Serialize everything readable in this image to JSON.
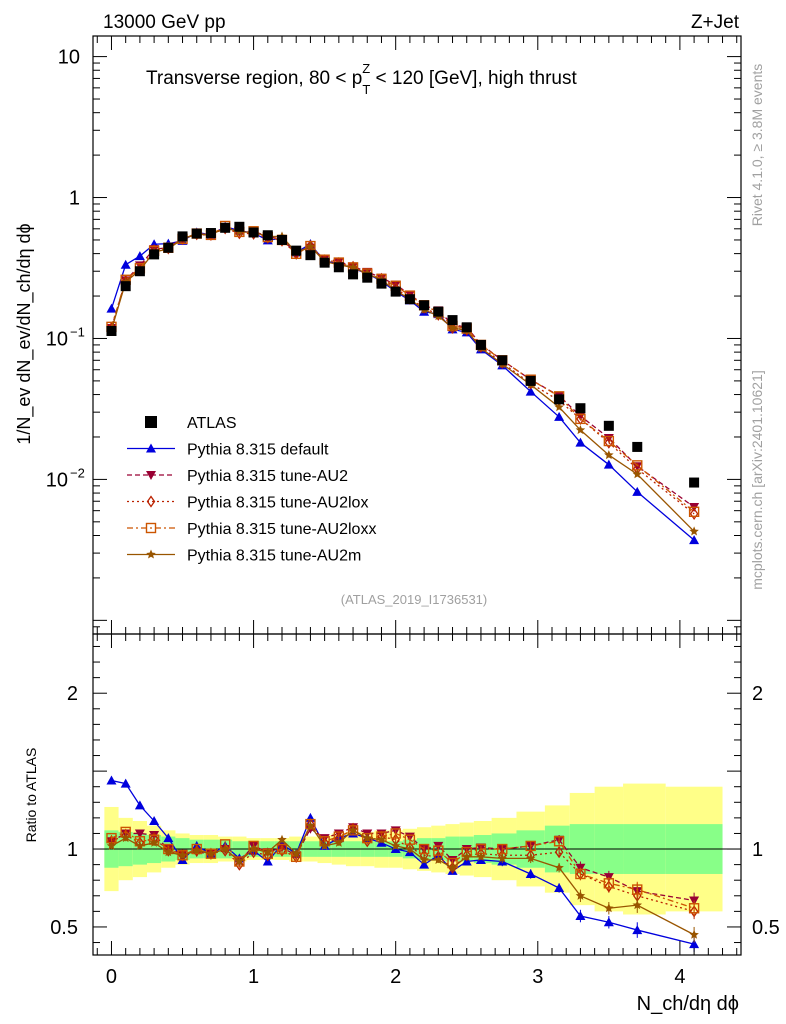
{
  "header": {
    "energy_label": "13000 GeV pp",
    "process_label": "Z+Jet",
    "rivet_label": "Rivet 4.1.0, ≥ 3.8M events",
    "mcplots_label": "mcplots.cern.ch [arXiv:2401.10621]"
  },
  "chart_data": {
    "type": "line",
    "title": "Transverse region, 80 < p",
    "title_sub": "T",
    "title_sup": "Z",
    "title_tail": " < 120 [GeV], high thrust",
    "watermark": "(ATLAS_2019_I1736531)",
    "yscale": "log",
    "xlim": [
      -0.13,
      4.43
    ],
    "ylim": [
      0.0008,
      14
    ],
    "ratio_ylim": [
      0.32,
      2.38
    ],
    "xticks": [
      0,
      1,
      2,
      3,
      4
    ],
    "xtick_labels": [
      "0",
      "1",
      "2",
      "3",
      "4"
    ],
    "ratio_yticks": [
      0.5,
      1,
      2
    ],
    "ratio_ytick_labels": [
      "0.5",
      "1",
      "2"
    ],
    "ylabel_main": "1/N_ev dN_ev/dN_ch/dη dϕ",
    "ylabel_ratio": "Ratio to ATLAS",
    "xlabel": "N_ch/dη dϕ",
    "legend": [
      "ATLAS",
      "Pythia 8.315 default",
      "Pythia 8.315 tune-AU2",
      "Pythia 8.315 tune-AU2lox",
      "Pythia 8.315 tune-AU2loxx",
      "Pythia 8.315 tune-AU2m"
    ],
    "x": [
      0.0,
      0.1,
      0.2,
      0.3,
      0.4,
      0.5,
      0.6,
      0.7,
      0.8,
      0.9,
      1.0,
      1.1,
      1.2,
      1.3,
      1.4,
      1.5,
      1.6,
      1.7,
      1.8,
      1.9,
      2.0,
      2.1,
      2.2,
      2.3,
      2.4,
      2.5,
      2.6,
      2.75,
      2.95,
      3.15,
      3.3,
      3.5,
      3.7,
      4.1
    ],
    "atlas": [
      0.113,
      0.235,
      0.3,
      0.395,
      0.44,
      0.53,
      0.555,
      0.56,
      0.61,
      0.62,
      0.565,
      0.54,
      0.5,
      0.42,
      0.39,
      0.345,
      0.32,
      0.285,
      0.27,
      0.245,
      0.215,
      0.19,
      0.172,
      0.155,
      0.135,
      0.12,
      0.09,
      0.07,
      0.05,
      0.037,
      0.032,
      0.024,
      0.017,
      0.0095
    ],
    "band_inner": [
      0.12,
      0.11,
      0.1,
      0.09,
      0.08,
      0.07,
      0.06,
      0.06,
      0.06,
      0.05,
      0.05,
      0.05,
      0.05,
      0.05,
      0.05,
      0.05,
      0.05,
      0.05,
      0.05,
      0.05,
      0.05,
      0.06,
      0.07,
      0.07,
      0.08,
      0.08,
      0.09,
      0.1,
      0.12,
      0.15,
      0.16,
      0.16,
      0.16,
      0.16
    ],
    "band_outer": [
      0.27,
      0.2,
      0.18,
      0.15,
      0.12,
      0.1,
      0.09,
      0.09,
      0.08,
      0.08,
      0.07,
      0.07,
      0.07,
      0.08,
      0.08,
      0.09,
      0.1,
      0.11,
      0.11,
      0.12,
      0.12,
      0.13,
      0.14,
      0.15,
      0.16,
      0.17,
      0.18,
      0.2,
      0.24,
      0.28,
      0.36,
      0.4,
      0.42,
      0.4
    ],
    "series": [
      {
        "name": "Pythia 8.315 default",
        "color": "#0000dd",
        "marker": "triangle-up",
        "dash": "",
        "ratio": [
          1.44,
          1.42,
          1.28,
          1.18,
          1.07,
          0.93,
          1.02,
          0.97,
          1.02,
          0.94,
          0.99,
          0.92,
          1.03,
          0.97,
          1.2,
          1.02,
          1.07,
          1.1,
          1.07,
          1.04,
          1.0,
          0.98,
          0.9,
          0.96,
          0.86,
          0.92,
          0.93,
          0.92,
          0.84,
          0.75,
          0.57,
          0.53,
          0.48,
          0.39
        ],
        "ratio_err": [
          0.02,
          0.02,
          0.02,
          0.02,
          0.02,
          0.02,
          0.02,
          0.02,
          0.02,
          0.02,
          0.02,
          0.02,
          0.02,
          0.02,
          0.02,
          0.02,
          0.02,
          0.02,
          0.02,
          0.02,
          0.02,
          0.02,
          0.02,
          0.02,
          0.02,
          0.02,
          0.02,
          0.03,
          0.03,
          0.03,
          0.04,
          0.04,
          0.05,
          0.05
        ]
      },
      {
        "name": "Pythia 8.315 tune-AU2",
        "color": "#990033",
        "marker": "triangle-down",
        "dash": "5,3",
        "ratio": [
          1.05,
          1.1,
          1.1,
          1.09,
          1.0,
          0.97,
          0.98,
          0.97,
          1.0,
          0.92,
          1.02,
          0.98,
          1.01,
          0.96,
          1.13,
          1.07,
          1.1,
          1.14,
          1.1,
          1.1,
          1.12,
          1.08,
          1.0,
          1.02,
          0.93,
          1.0,
          1.01,
          1.0,
          1.02,
          1.06,
          0.88,
          0.82,
          0.73,
          0.67
        ],
        "ratio_err": [
          0.02,
          0.02,
          0.02,
          0.02,
          0.02,
          0.02,
          0.02,
          0.02,
          0.02,
          0.02,
          0.02,
          0.02,
          0.02,
          0.02,
          0.02,
          0.02,
          0.02,
          0.02,
          0.02,
          0.02,
          0.02,
          0.02,
          0.02,
          0.02,
          0.02,
          0.02,
          0.02,
          0.03,
          0.03,
          0.03,
          0.04,
          0.04,
          0.05,
          0.05
        ]
      },
      {
        "name": "Pythia 8.315 tune-AU2lox",
        "color": "#bb2200",
        "marker": "diamond-open",
        "dash": "2,3",
        "ratio": [
          1.05,
          1.09,
          1.04,
          1.07,
          0.99,
          0.96,
          0.99,
          0.97,
          0.99,
          0.9,
          0.98,
          0.96,
          0.99,
          0.95,
          1.16,
          1.04,
          1.07,
          1.13,
          1.05,
          1.08,
          1.06,
          1.01,
          0.96,
          0.95,
          0.88,
          0.96,
          0.97,
          0.96,
          0.96,
          0.98,
          0.84,
          0.76,
          0.7,
          0.6
        ],
        "ratio_err": [
          0.02,
          0.02,
          0.02,
          0.02,
          0.02,
          0.02,
          0.02,
          0.02,
          0.02,
          0.02,
          0.02,
          0.02,
          0.02,
          0.02,
          0.02,
          0.02,
          0.02,
          0.02,
          0.02,
          0.02,
          0.02,
          0.02,
          0.02,
          0.02,
          0.02,
          0.02,
          0.02,
          0.03,
          0.03,
          0.03,
          0.04,
          0.04,
          0.05,
          0.05
        ]
      },
      {
        "name": "Pythia 8.315 tune-AU2loxx",
        "color": "#cc5500",
        "marker": "square-open",
        "dash": "6,3,2,3",
        "ratio": [
          1.07,
          1.11,
          1.05,
          1.06,
          1.0,
          0.96,
          1.0,
          0.97,
          1.03,
          0.92,
          1.02,
          0.97,
          1.0,
          0.95,
          1.16,
          1.05,
          1.08,
          1.12,
          1.07,
          1.08,
          1.1,
          1.06,
          1.0,
          0.99,
          0.91,
          0.98,
          1.0,
          1.0,
          1.02,
          1.05,
          0.84,
          0.78,
          0.74,
          0.62
        ],
        "ratio_err": [
          0.02,
          0.02,
          0.02,
          0.02,
          0.02,
          0.02,
          0.02,
          0.02,
          0.02,
          0.02,
          0.02,
          0.02,
          0.02,
          0.02,
          0.02,
          0.02,
          0.02,
          0.02,
          0.02,
          0.02,
          0.02,
          0.02,
          0.02,
          0.02,
          0.02,
          0.02,
          0.02,
          0.03,
          0.03,
          0.03,
          0.04,
          0.04,
          0.05,
          0.05
        ]
      },
      {
        "name": "Pythia 8.315 tune-AU2m",
        "color": "#995500",
        "marker": "star",
        "dash": "",
        "ratio": [
          1.02,
          1.07,
          1.02,
          1.04,
          0.98,
          0.96,
          0.99,
          0.97,
          1.0,
          0.92,
          1.0,
          0.98,
          1.06,
          0.97,
          1.15,
          1.02,
          1.04,
          1.12,
          1.07,
          1.06,
          1.02,
          1.0,
          0.93,
          0.93,
          0.88,
          0.95,
          0.95,
          0.94,
          0.94,
          0.88,
          0.7,
          0.62,
          0.64,
          0.45
        ],
        "ratio_err": [
          0.02,
          0.02,
          0.02,
          0.02,
          0.02,
          0.02,
          0.02,
          0.02,
          0.02,
          0.02,
          0.02,
          0.02,
          0.02,
          0.02,
          0.02,
          0.02,
          0.02,
          0.02,
          0.02,
          0.02,
          0.02,
          0.02,
          0.02,
          0.02,
          0.02,
          0.02,
          0.02,
          0.03,
          0.03,
          0.03,
          0.04,
          0.04,
          0.05,
          0.05
        ]
      }
    ]
  }
}
